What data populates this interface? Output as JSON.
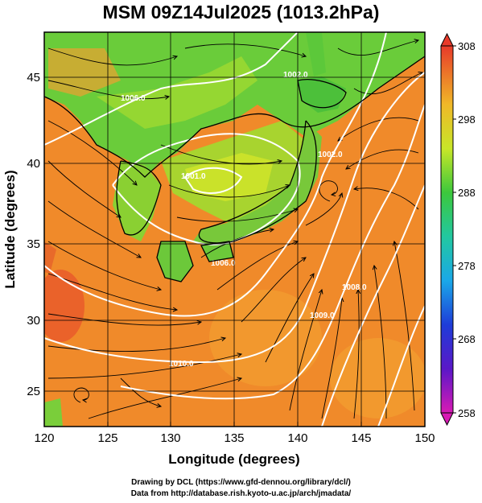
{
  "title": "MSM 09Z14Jul2025 (1013.2hPa)",
  "axes": {
    "xlabel": "Longitude (degrees)",
    "ylabel": "Latitude  (degrees)",
    "x_ticks": [
      "120",
      "125",
      "130",
      "135",
      "140",
      "145",
      "150"
    ],
    "y_ticks": [
      "25",
      "30",
      "35",
      "40",
      "45"
    ]
  },
  "colorbar": {
    "ticks": [
      "308",
      "298",
      "288",
      "278",
      "268",
      "258"
    ]
  },
  "contour_labels": [
    "1002.0",
    "1001.0",
    "1002.0",
    "1006.0",
    "1010.0",
    "1009.0",
    "1008.0",
    "1006.0"
  ],
  "credits": {
    "line1": "Drawing by DCL (https://www.gfd-dennou.org/library/dcl/)",
    "line2": "Data from http://database.rish.kyoto-u.ac.jp/arch/jmadata/"
  },
  "colors": {
    "ocean_warm": "#f08a2a",
    "land_green": "#5cc83a",
    "colorbar_top": "#e8362a",
    "colorbar_bottom": "#d81aa0"
  }
}
